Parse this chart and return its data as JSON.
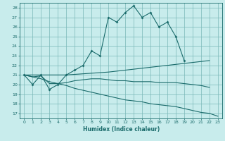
{
  "xlabel": "Humidex (Indice chaleur)",
  "bg_color": "#c8ecec",
  "grid_color": "#7ab8b8",
  "line_color": "#1a6b6b",
  "xlim": [
    -0.5,
    23.5
  ],
  "ylim": [
    16.5,
    28.5
  ],
  "yticks": [
    17,
    18,
    19,
    20,
    21,
    22,
    23,
    24,
    25,
    26,
    27,
    28
  ],
  "xticks": [
    0,
    1,
    2,
    3,
    4,
    5,
    6,
    7,
    8,
    9,
    10,
    11,
    12,
    13,
    14,
    15,
    16,
    17,
    18,
    19,
    20,
    21,
    22,
    23
  ],
  "top_x": [
    0,
    1,
    2,
    3,
    4,
    5,
    6,
    7,
    8,
    9,
    10,
    11,
    12,
    13,
    14,
    15,
    16,
    17,
    18,
    19
  ],
  "top_y": [
    21,
    20,
    21,
    19.5,
    20,
    21,
    21.5,
    22,
    23.5,
    23,
    27,
    26.5,
    27.5,
    28.2,
    27,
    27.5,
    26,
    26.5,
    25,
    22.5
  ],
  "upper_x": [
    0,
    5,
    10,
    12,
    14,
    15,
    16,
    17,
    18,
    19,
    20,
    21,
    22
  ],
  "upper_y": [
    21,
    21,
    21.3,
    21.5,
    21.7,
    21.8,
    21.9,
    22.0,
    22.1,
    22.2,
    22.3,
    22.4,
    22.5
  ],
  "mid_x": [
    0,
    1,
    2,
    3,
    4,
    5,
    6,
    7,
    8,
    9,
    10,
    11,
    12,
    13,
    14,
    15,
    16,
    17,
    18,
    19,
    20,
    21,
    22
  ],
  "mid_y": [
    21,
    20.8,
    20.9,
    20.1,
    20.1,
    20.2,
    20.4,
    20.5,
    20.6,
    20.6,
    20.5,
    20.4,
    20.4,
    20.3,
    20.3,
    20.3,
    20.2,
    20.2,
    20.2,
    20.1,
    20.0,
    19.9,
    19.7
  ],
  "bot_x": [
    0,
    1,
    2,
    3,
    4,
    5,
    6,
    7,
    8,
    9,
    10,
    11,
    12,
    13,
    14,
    15,
    16,
    17,
    18,
    19,
    20,
    21,
    22,
    23
  ],
  "bot_y": [
    21,
    20.8,
    20.6,
    20.3,
    20.1,
    19.9,
    19.6,
    19.4,
    19.2,
    19.0,
    18.8,
    18.6,
    18.4,
    18.3,
    18.2,
    18.0,
    17.9,
    17.8,
    17.7,
    17.5,
    17.3,
    17.1,
    17.0,
    16.7
  ]
}
